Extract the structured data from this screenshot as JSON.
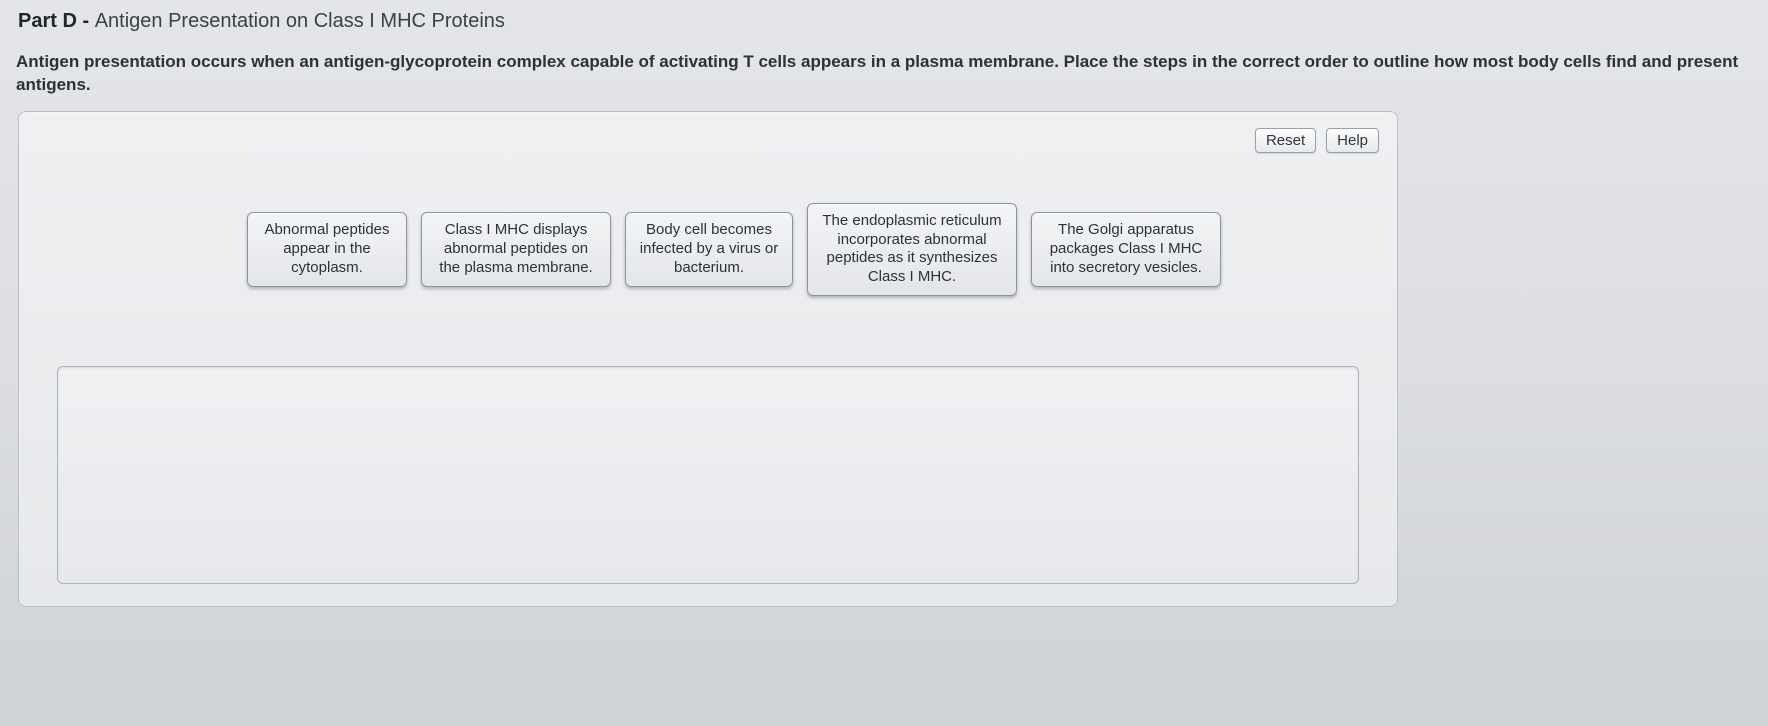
{
  "header": {
    "part_label": "Part D",
    "separator": " - ",
    "title": "Antigen Presentation on Class I MHC Proteins"
  },
  "instruction": "Antigen presentation occurs when an antigen-glycoprotein complex capable of activating T cells appears in a plasma membrane. Place the steps in the correct order to outline how most body cells find and present antigens.",
  "buttons": {
    "reset": "Reset",
    "help": "Help"
  },
  "tiles": [
    "Abnormal peptides appear in the cytoplasm.",
    "Class I MHC displays abnormal peptides on the plasma membrane.",
    "Body cell becomes infected by a virus or bacterium.",
    "The endoplasmic reticulum incorporates abnormal peptides as it synthesizes Class I MHC.",
    "The Golgi apparatus packages Class I MHC into secretory vesicles."
  ],
  "colors": {
    "page_bg_top": "#e3e5e8",
    "page_bg_bottom": "#cfd2d6",
    "frame_border": "#b9bec4",
    "tile_border": "#8e949c",
    "tile_bg_top": "#f3f4f6",
    "tile_bg_bottom": "#e3e5e8",
    "drop_border": "#aeb4bb",
    "text": "#2c3238",
    "btn_border": "#9aa0a8"
  }
}
